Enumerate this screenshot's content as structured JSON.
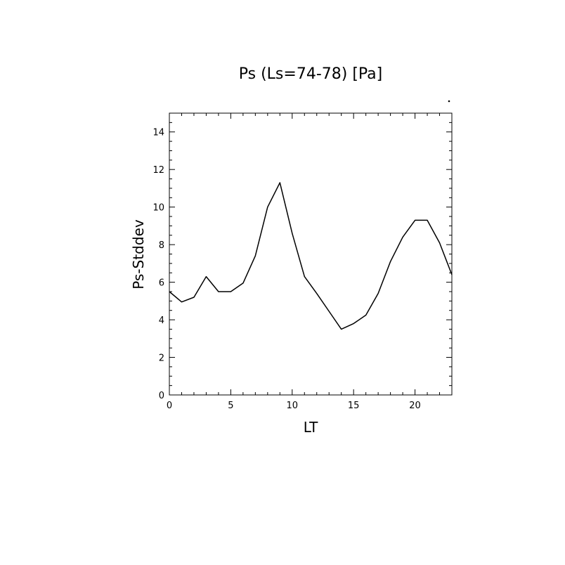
{
  "chart_data": {
    "type": "line",
    "title": "Ps (Ls=74-78) [Pa]",
    "xlabel": "LT",
    "ylabel": "Ps-Stddev",
    "xlim": [
      0,
      23
    ],
    "ylim": [
      0,
      15
    ],
    "x_ticks": [
      0,
      5,
      10,
      15,
      20
    ],
    "y_ticks": [
      0,
      2,
      4,
      6,
      8,
      10,
      12,
      14
    ],
    "grid": false,
    "series": [
      {
        "x": [
          0,
          1,
          2,
          3,
          4,
          5,
          6,
          7,
          8,
          9,
          10,
          11,
          12,
          13,
          14,
          15,
          16,
          17,
          18,
          19,
          20,
          21,
          22,
          23
        ],
        "values": [
          5.5,
          4.95,
          5.2,
          6.3,
          5.5,
          5.5,
          5.95,
          7.4,
          10.0,
          11.3,
          8.6,
          6.3,
          5.4,
          4.45,
          3.5,
          3.8,
          4.25,
          5.4,
          7.1,
          8.4,
          9.3,
          9.3,
          8.1,
          6.4
        ]
      }
    ]
  }
}
